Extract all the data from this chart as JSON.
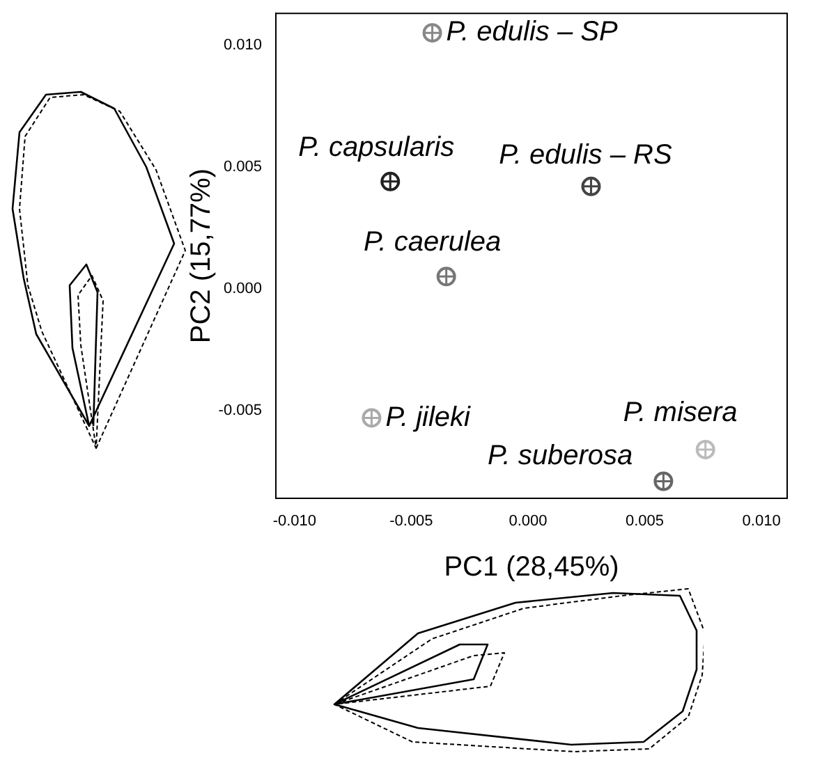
{
  "chart_data": {
    "type": "scatter",
    "xlabel": "PC1 (28,45%)",
    "ylabel": "PC2 (15,77%)",
    "xlim": [
      -0.0108,
      0.0111
    ],
    "ylim": [
      -0.0086,
      0.0113
    ],
    "xticks": [
      {
        "value": -0.01,
        "label": "-0.010"
      },
      {
        "value": -0.005,
        "label": "-0.005"
      },
      {
        "value": 0,
        "label": "0.000"
      },
      {
        "value": 0.005,
        "label": "0.005"
      },
      {
        "value": 0.01,
        "label": "0.010"
      }
    ],
    "yticks": [
      {
        "value": -0.005,
        "label": "-0.005"
      },
      {
        "value": 0,
        "label": "0.000"
      },
      {
        "value": 0.005,
        "label": "0.005"
      },
      {
        "value": 0.01,
        "label": "0.010"
      }
    ],
    "grid": false,
    "legend": false,
    "marker": "circle",
    "series": [
      {
        "name": "P. edulis – SP",
        "color": "#888888",
        "x": [
          -0.0041
        ],
        "values": [
          0.0105
        ]
      },
      {
        "name": "P. capsularis",
        "color": "#222222",
        "x": [
          -0.0059
        ],
        "values": [
          0.0044
        ]
      },
      {
        "name": "P. edulis – RS",
        "color": "#444444",
        "x": [
          0.0027
        ],
        "values": [
          0.0042
        ]
      },
      {
        "name": "P. caerulea",
        "color": "#777777",
        "x": [
          -0.0035
        ],
        "values": [
          0.0005
        ]
      },
      {
        "name": "P. jileki",
        "color": "#aaaaaa",
        "x": [
          -0.0067
        ],
        "values": [
          -0.0053
        ]
      },
      {
        "name": "P. misera",
        "color": "#bbbbbb",
        "x": [
          0.0076
        ],
        "values": [
          -0.0066
        ]
      },
      {
        "name": "P. suberosa",
        "color": "#666666",
        "x": [
          0.0058
        ],
        "values": [
          -0.0079
        ]
      }
    ]
  }
}
